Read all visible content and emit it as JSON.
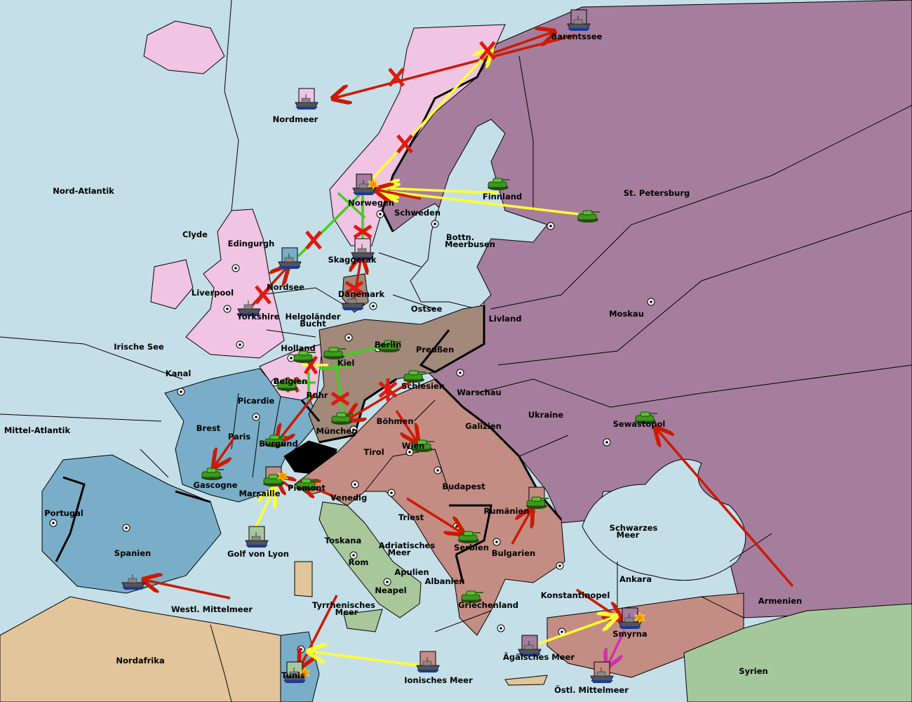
{
  "powers": {
    "england": "#f0c4e2",
    "france": "#7aaec8",
    "germany": "#a2897a",
    "austria": "#c48d84",
    "italy": "#a8c89c",
    "russia": "#a67e9d",
    "neutral_africa": "#e2c59a",
    "sea": "#c5dfe9"
  },
  "order_colors": {
    "move": "#cc1a00",
    "support": "#ffff33",
    "convoy": "#44cc22",
    "retreat": "#d030b0"
  },
  "labels": {
    "barentssee": "Barentssee",
    "nordmeer": "Nordmeer",
    "nord_atlantik": "Nord-Atlantik",
    "norwegen": "Norwegen",
    "schweden": "Schweden",
    "finnland": "Finnland",
    "st_petersburg": "St. Petersburg",
    "clyde": "Clyde",
    "edingurgh": "Edingurgh",
    "bottn_1": "Bottn.",
    "bottn_2": "Meerbusen",
    "skaggerak": "Skaggerak",
    "nordsee": "Nordsee",
    "liverpool": "Liverpool",
    "daenemark": "Dänemark",
    "ostsee": "Ostsee",
    "livland": "Livland",
    "moskau": "Moskau",
    "yorkshire": "Yorkshire",
    "helgo_1": "Helgoländer",
    "helgo_2": "Bucht",
    "irische_see": "Irische See",
    "holland": "Holland",
    "berlin": "Berlin",
    "preussen": "Preußen",
    "kiel": "Kiel",
    "kanal": "Kanal",
    "belgien": "Belgien",
    "schlesien": "Schlesien",
    "warschau": "Warschau",
    "ruhr": "Ruhr",
    "picardie": "Picardie",
    "ukraine": "Ukraine",
    "mittel_atlantik": "Mittel-Atlantik",
    "brest": "Brest",
    "boehmen": "Böhmen",
    "sewastopol": "Sewastopol",
    "galizien": "Galizien",
    "paris": "Paris",
    "muenchen": "München",
    "burgund": "Burgund",
    "wien": "Wien",
    "tirol": "Tirol",
    "gascogne": "Gascogne",
    "budapest": "Budapest",
    "piemont": "Piemont",
    "marsaille": "Marsaille",
    "venedig": "Venedig",
    "rumaenien": "Rumänien",
    "portugal": "Portugal",
    "triest": "Triest",
    "schwarzes_1": "Schwarzes",
    "schwarzes_2": "Meer",
    "serbien": "Serbien",
    "toskana": "Toskana",
    "adria_1": "Adriatisches",
    "adria_2": "Meer",
    "bulgarien": "Bulgarien",
    "spanien": "Spanien",
    "golf_von_lyon": "Golf von Lyon",
    "rom": "Rom",
    "apulien": "Apulien",
    "albanien": "Albanien",
    "ankara": "Ankara",
    "neapel": "Neapel",
    "konstantinopel": "Konstantinopel",
    "armenien": "Armenien",
    "griechenland": "Griechenland",
    "westl_mittelmeer": "Westl. Mittelmeer",
    "tyrrh_1": "Tyrrhenisches",
    "tyrrh_2": "Meer",
    "smyrna": "Smyrna",
    "aegaeisches_meer": "Ägäisches Meer",
    "nordafrika": "Nordafrika",
    "tunis": "Tunis",
    "syrien": "Syrien",
    "ionisches_meer": "Ionisches Meer",
    "oestl_mittelmeer": "Östl. Mittelmeer"
  }
}
